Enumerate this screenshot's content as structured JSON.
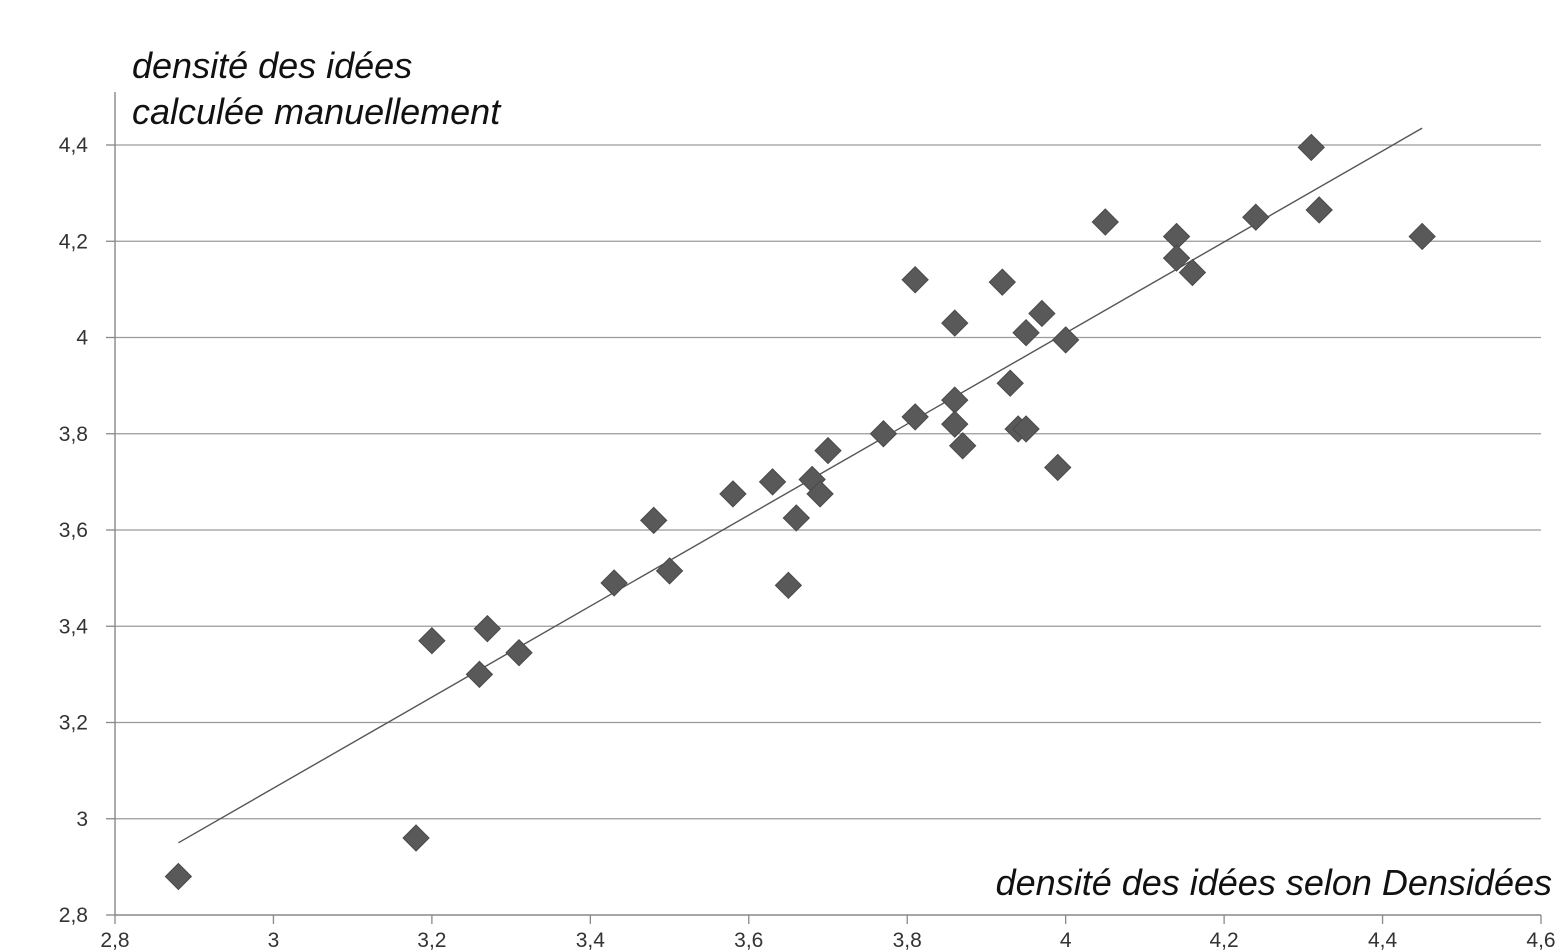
{
  "chart_data": {
    "type": "scatter",
    "ylabel_lines": [
      "densité des idées",
      "calculée manuellement"
    ],
    "xlabel": "densité des idées selon Densidées",
    "xlim": [
      2.8,
      4.6
    ],
    "ylim": [
      2.8,
      4.4
    ],
    "x_ticks": [
      2.8,
      3,
      3.2,
      3.4,
      3.6,
      3.8,
      4,
      4.2,
      4.4,
      4.6
    ],
    "x_tick_labels": [
      "2,8",
      "3",
      "3,2",
      "3,4",
      "3,6",
      "3,8",
      "4",
      "4,2",
      "4,4",
      "4,6"
    ],
    "y_ticks": [
      2.8,
      3,
      3.2,
      3.4,
      3.6,
      3.8,
      4,
      4.2,
      4.4
    ],
    "y_tick_labels": [
      "2,8",
      "3",
      "3,2",
      "3,4",
      "3,6",
      "3,8",
      "4",
      "4,2",
      "4,4"
    ],
    "grid": "horizontal",
    "marker": "diamond",
    "marker_color": "#595959",
    "trendline": {
      "x": [
        2.88,
        4.45
      ],
      "y": [
        2.95,
        4.435
      ],
      "color": "#555555"
    },
    "points": [
      {
        "x": 2.88,
        "y": 2.88
      },
      {
        "x": 3.18,
        "y": 2.96
      },
      {
        "x": 3.2,
        "y": 3.37
      },
      {
        "x": 3.26,
        "y": 3.3
      },
      {
        "x": 3.27,
        "y": 3.395
      },
      {
        "x": 3.31,
        "y": 3.345
      },
      {
        "x": 3.43,
        "y": 3.49
      },
      {
        "x": 3.48,
        "y": 3.62
      },
      {
        "x": 3.5,
        "y": 3.515
      },
      {
        "x": 3.58,
        "y": 3.675
      },
      {
        "x": 3.63,
        "y": 3.7
      },
      {
        "x": 3.65,
        "y": 3.485
      },
      {
        "x": 3.66,
        "y": 3.625
      },
      {
        "x": 3.68,
        "y": 3.705
      },
      {
        "x": 3.69,
        "y": 3.675
      },
      {
        "x": 3.7,
        "y": 3.765
      },
      {
        "x": 3.77,
        "y": 3.8
      },
      {
        "x": 3.81,
        "y": 3.835
      },
      {
        "x": 3.81,
        "y": 4.12
      },
      {
        "x": 3.86,
        "y": 4.03
      },
      {
        "x": 3.86,
        "y": 3.87
      },
      {
        "x": 3.86,
        "y": 3.82
      },
      {
        "x": 3.87,
        "y": 3.775
      },
      {
        "x": 3.92,
        "y": 4.115
      },
      {
        "x": 3.93,
        "y": 3.905
      },
      {
        "x": 3.94,
        "y": 3.81
      },
      {
        "x": 3.95,
        "y": 3.81
      },
      {
        "x": 3.95,
        "y": 4.01
      },
      {
        "x": 3.97,
        "y": 4.05
      },
      {
        "x": 3.99,
        "y": 3.73
      },
      {
        "x": 4.0,
        "y": 3.995
      },
      {
        "x": 4.05,
        "y": 4.24
      },
      {
        "x": 4.14,
        "y": 4.21
      },
      {
        "x": 4.14,
        "y": 4.165
      },
      {
        "x": 4.16,
        "y": 4.135
      },
      {
        "x": 4.24,
        "y": 4.25
      },
      {
        "x": 4.31,
        "y": 4.395
      },
      {
        "x": 4.32,
        "y": 4.265
      },
      {
        "x": 4.45,
        "y": 4.21
      }
    ]
  }
}
